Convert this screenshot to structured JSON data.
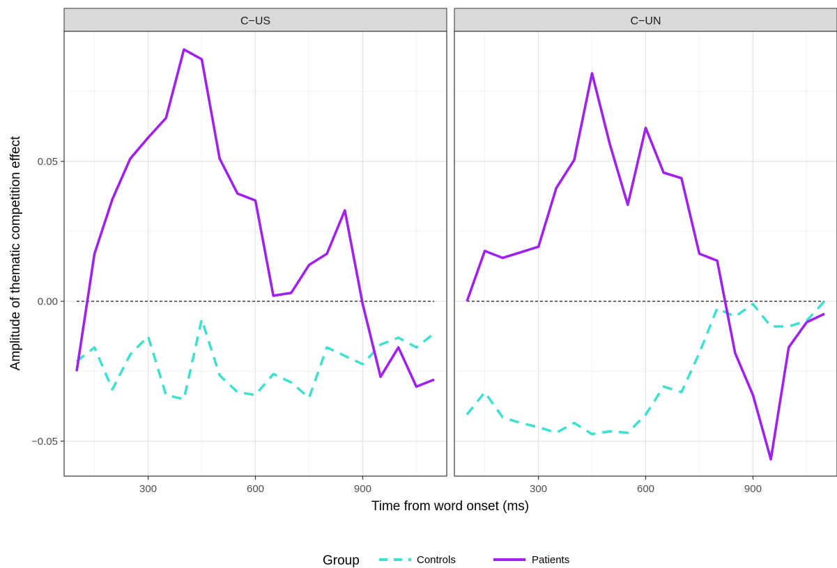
{
  "chart_data": {
    "type": "line",
    "xlabel": "Time from word onset (ms)",
    "ylabel": "Amplitude of thematic competition effect",
    "xlim": [
      65,
      1135
    ],
    "ylim": [
      -0.0625,
      0.0965
    ],
    "x_ticks": [
      300,
      600,
      900
    ],
    "x_tick_labels": [
      "300",
      "600",
      "900"
    ],
    "y_ticks": [
      -0.05,
      0,
      0.05
    ],
    "y_tick_labels": [
      "−0.05",
      "0.00",
      "0.05"
    ],
    "grid": true,
    "reference_line": 0,
    "legend": {
      "title": "Group",
      "position": "bottom",
      "entries": [
        {
          "label": "Controls",
          "color": "#40E0D0",
          "dash": "dashed"
        },
        {
          "label": "Patients",
          "color": "#A020F0",
          "dash": "solid"
        }
      ]
    },
    "x": [
      100,
      150,
      200,
      250,
      300,
      350,
      400,
      450,
      500,
      550,
      600,
      650,
      700,
      750,
      800,
      850,
      900,
      950,
      1000,
      1050,
      1100
    ],
    "panels": [
      {
        "label": "C−US",
        "series": [
          {
            "name": "Controls",
            "values": [
              -0.0215,
              -0.0165,
              -0.0315,
              -0.019,
              -0.0125,
              -0.0335,
              -0.035,
              -0.0065,
              -0.0265,
              -0.0325,
              -0.0335,
              -0.026,
              -0.029,
              -0.0345,
              -0.0165,
              -0.0195,
              -0.0225,
              -0.0155,
              -0.013,
              -0.0165,
              -0.0115
            ]
          },
          {
            "name": "Patients",
            "values": [
              -0.025,
              0.017,
              0.0365,
              0.051,
              0.0585,
              0.0655,
              0.09,
              0.0865,
              0.051,
              0.0385,
              0.036,
              0.002,
              0.003,
              0.013,
              0.017,
              0.0325,
              -0.001,
              -0.027,
              -0.0165,
              -0.0305,
              -0.028
            ]
          }
        ]
      },
      {
        "label": "C−UN",
        "series": [
          {
            "name": "Controls",
            "values": [
              -0.0405,
              -0.0325,
              -0.0415,
              -0.0435,
              -0.045,
              -0.047,
              -0.0435,
              -0.0475,
              -0.0465,
              -0.047,
              -0.0405,
              -0.0305,
              -0.0325,
              -0.0185,
              -0.0025,
              -0.0055,
              -0.001,
              -0.009,
              -0.009,
              -0.007,
              0
            ]
          },
          {
            "name": "Patients",
            "values": [
              0,
              0.018,
              0.0155,
              0.0175,
              0.0195,
              0.0405,
              0.0505,
              0.0815,
              0.056,
              0.0345,
              0.062,
              0.046,
              0.044,
              0.017,
              0.0145,
              -0.0185,
              -0.0335,
              -0.0565,
              -0.0165,
              -0.0075,
              -0.0045
            ]
          }
        ]
      }
    ]
  }
}
